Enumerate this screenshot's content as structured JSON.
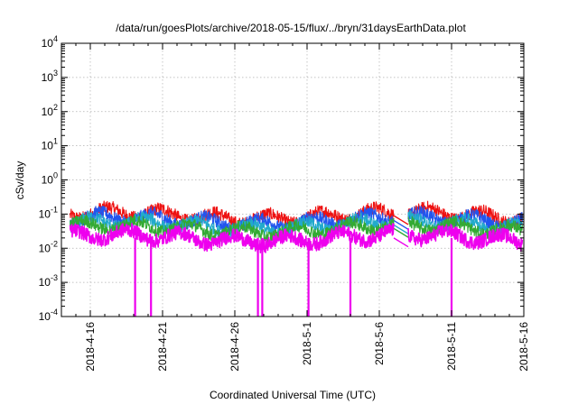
{
  "chart_data": {
    "type": "line",
    "title": "/data/run/goesPlots/archive/2018-05-15/flux/../bryn/31daysEarthData.plot",
    "xlabel": "Coordinated Universal Time (UTC)",
    "ylabel": "cSv/day",
    "yscale": "log",
    "ylim": [
      0.0001,
      10000
    ],
    "xlim": [
      "2018-04-14",
      "2018-05-16"
    ],
    "x_ticks": [
      "2018-4-16",
      "2018-4-21",
      "2018-4-26",
      "2018-5-1",
      "2018-5-6",
      "2018-5-11",
      "2018-5-16"
    ],
    "y_ticks": [
      {
        "base": "10",
        "exp": "-4"
      },
      {
        "base": "10",
        "exp": "-3"
      },
      {
        "base": "10",
        "exp": "-2"
      },
      {
        "base": "10",
        "exp": "-1"
      },
      {
        "base": "10",
        "exp": "0"
      },
      {
        "base": "10",
        "exp": "1"
      },
      {
        "base": "10",
        "exp": "2"
      },
      {
        "base": "10",
        "exp": "3"
      },
      {
        "base": "10",
        "exp": "4"
      }
    ],
    "grid": true,
    "data_gap": [
      "2018-05-07",
      "2018-05-08"
    ],
    "series": [
      {
        "color": "#ee1111",
        "base": 0.09,
        "spread": 0.05
      },
      {
        "color": "#2255ee",
        "base": 0.065,
        "spread": 0.035
      },
      {
        "color": "#22aacc",
        "base": 0.048,
        "spread": 0.025
      },
      {
        "color": "#33aa33",
        "base": 0.038,
        "spread": 0.02
      },
      {
        "color": "#ee00ee",
        "base": 0.02,
        "spread": 0.012
      }
    ],
    "dips": [
      {
        "date": "2018-04-19.1",
        "value": 0.0001
      },
      {
        "date": "2018-04-20.2",
        "value": 0.0001
      },
      {
        "date": "2018-04-27.6",
        "value": 0.0001
      },
      {
        "date": "2018-04-27.9",
        "value": 0.0001
      },
      {
        "date": "2018-05-01.1",
        "value": 0.0001
      },
      {
        "date": "2018-05-04.0",
        "value": 0.0001
      },
      {
        "date": "2018-05-11.0",
        "value": 0.0001
      }
    ]
  }
}
